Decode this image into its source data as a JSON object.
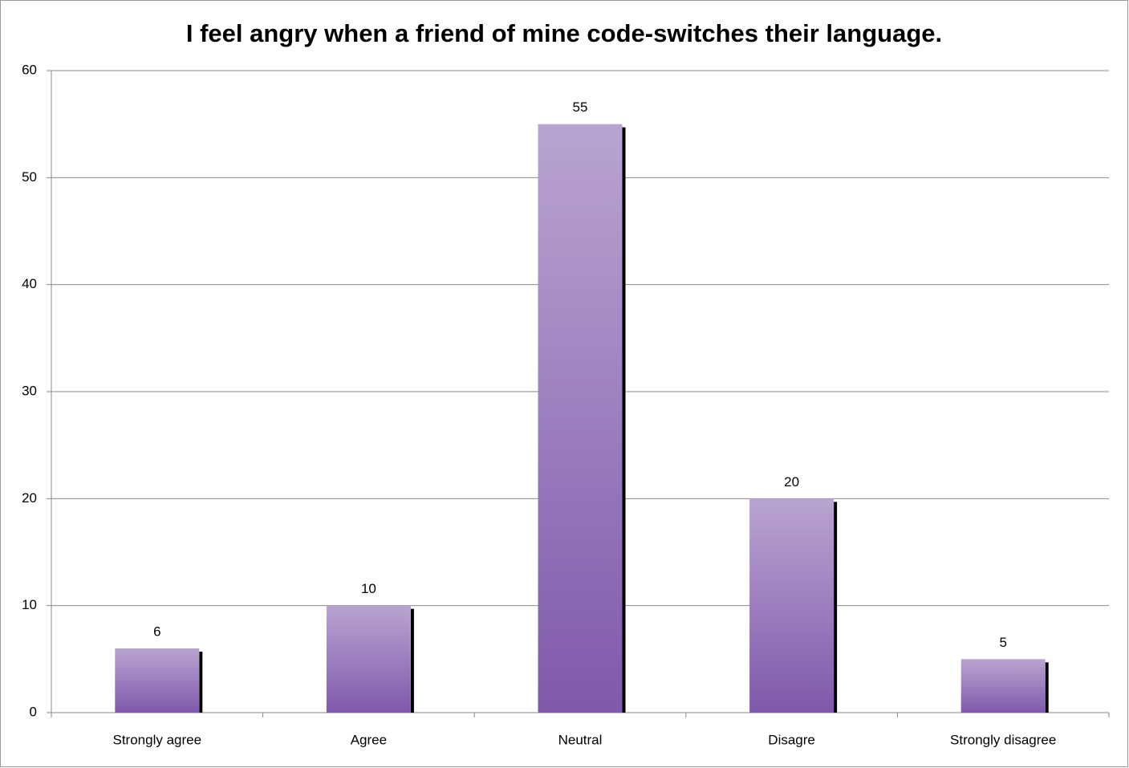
{
  "chart_data": {
    "type": "bar",
    "title": "I feel angry when a friend of mine code-switches their language.",
    "categories": [
      "Strongly agree",
      "Agree",
      "Neutral",
      "Disagre",
      "Strongly disagree"
    ],
    "values": [
      6,
      10,
      55,
      20,
      5
    ],
    "color": "#7f59ab",
    "ylim": [
      0,
      60
    ],
    "yticks": [
      0,
      10,
      20,
      30,
      40,
      50,
      60
    ],
    "grid": true
  }
}
